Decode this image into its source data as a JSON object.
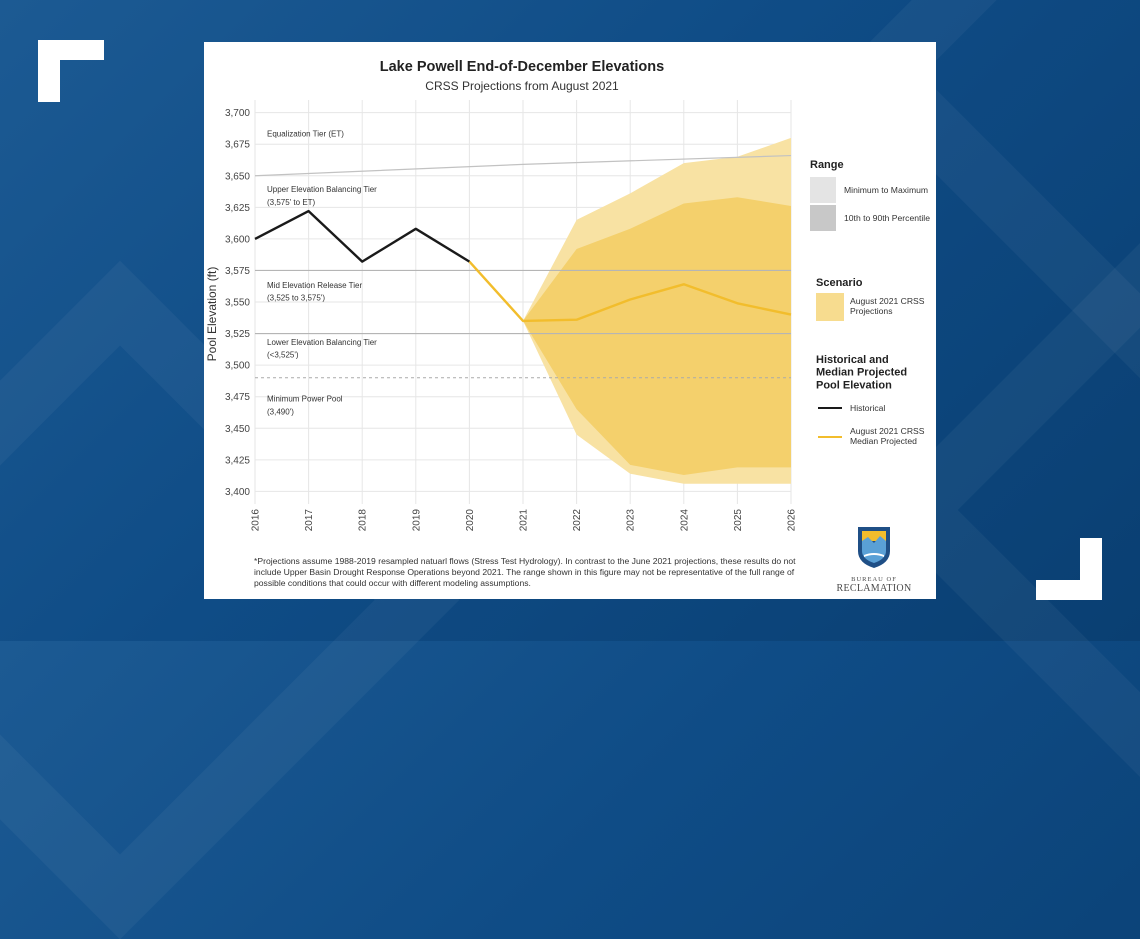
{
  "chart_data": {
    "type": "line",
    "title": "Lake Powell End-of-December Elevations",
    "subtitle": "CRSS Projections from August 2021",
    "ylabel": "Pool Elevation (ft)",
    "xlim": [
      2016,
      2026
    ],
    "ylim": [
      3390,
      3710
    ],
    "x_ticks": [
      "2016",
      "2017",
      "2018",
      "2019",
      "2020",
      "2021",
      "2022",
      "2023",
      "2024",
      "2025",
      "2026"
    ],
    "y_ticks": [
      "3,400",
      "3,425",
      "3,450",
      "3,475",
      "3,500",
      "3,525",
      "3,550",
      "3,575",
      "3,600",
      "3,625",
      "3,650",
      "3,675",
      "3,700"
    ],
    "y_tick_values": [
      3400,
      3425,
      3450,
      3475,
      3500,
      3525,
      3550,
      3575,
      3600,
      3625,
      3650,
      3675,
      3700
    ],
    "grid": true,
    "tiers": [
      {
        "label": "Equalization Tier (ET)",
        "sub": "",
        "label_y": 3681,
        "sub_y": null
      },
      {
        "label": "Upper Elevation Balancing Tier",
        "sub": "(3,575' to ET)",
        "label_y": 3637,
        "sub_y": 3627
      },
      {
        "label": "Mid Elevation Release Tier",
        "sub": "(3,525 to 3,575')",
        "label_y": 3561,
        "sub_y": 3551
      },
      {
        "label": "Lower Elevation Balancing Tier",
        "sub": "(<3,525')",
        "label_y": 3516,
        "sub_y": 3506
      },
      {
        "label": "Minimum Power Pool",
        "sub": "(3,490')",
        "label_y": 3471,
        "sub_y": 3461
      }
    ],
    "equalization_line": {
      "x": [
        2016,
        2021,
        2026
      ],
      "y": [
        3650,
        3659,
        3666
      ]
    },
    "tier_lines": [
      3575,
      3525
    ],
    "minimum_power_pool": 3490,
    "historical": {
      "name": "Historical",
      "x": [
        2016,
        2017,
        2018,
        2019,
        2020
      ],
      "y": [
        3600,
        3622,
        3582,
        3608,
        3582
      ]
    },
    "median_projected": {
      "name": "August 2021 CRSS Median Projected",
      "x": [
        2020,
        2021,
        2022,
        2023,
        2024,
        2025,
        2026
      ],
      "y": [
        3582,
        3535,
        3536,
        3552,
        3564,
        3549,
        3540
      ]
    },
    "range_min_max": {
      "x": [
        2021,
        2022,
        2023,
        2024,
        2025,
        2026
      ],
      "upper": [
        3535,
        3615,
        3636,
        3660,
        3665,
        3680
      ],
      "lower": [
        3535,
        3445,
        3414,
        3406,
        3406,
        3406
      ]
    },
    "range_p10_p90": {
      "x": [
        2021,
        2022,
        2023,
        2024,
        2025,
        2026
      ],
      "upper": [
        3535,
        3592,
        3608,
        3628,
        3633,
        3626
      ],
      "lower": [
        3535,
        3465,
        3421,
        3413,
        3419,
        3419
      ]
    },
    "legend": {
      "range_title": "Range",
      "range_items": [
        "Minimum to Maximum",
        "10th to 90th Percentile"
      ],
      "scenario_title": "Scenario",
      "scenario_item": "August 2021 CRSS Projections",
      "hist_title": "Historical and Median Projected Pool Elevation",
      "hist_items": [
        "Historical",
        "August 2021 CRSS Median Projected"
      ]
    },
    "colors": {
      "historical": "#1a1a1a",
      "median": "#f2bd2c",
      "band_outer": "#f8e2a3",
      "band_inner": "#f4d06c",
      "grid": "#e6e6e6",
      "tier_line": "#c2c2c2"
    }
  },
  "footnote": "*Projections assume 1988-2019 resampled natuarl flows (Stress Test Hydrology). In contrast to the June 2021 projections, these results do not include Upper Basin Drought Response Operations beyond 2021. The range shown in this figure may not be representative of the full range of possible conditions that could occur with different modeling assumptions.",
  "logo": {
    "line1": "BUREAU OF",
    "line2": "RECLAMATION"
  }
}
